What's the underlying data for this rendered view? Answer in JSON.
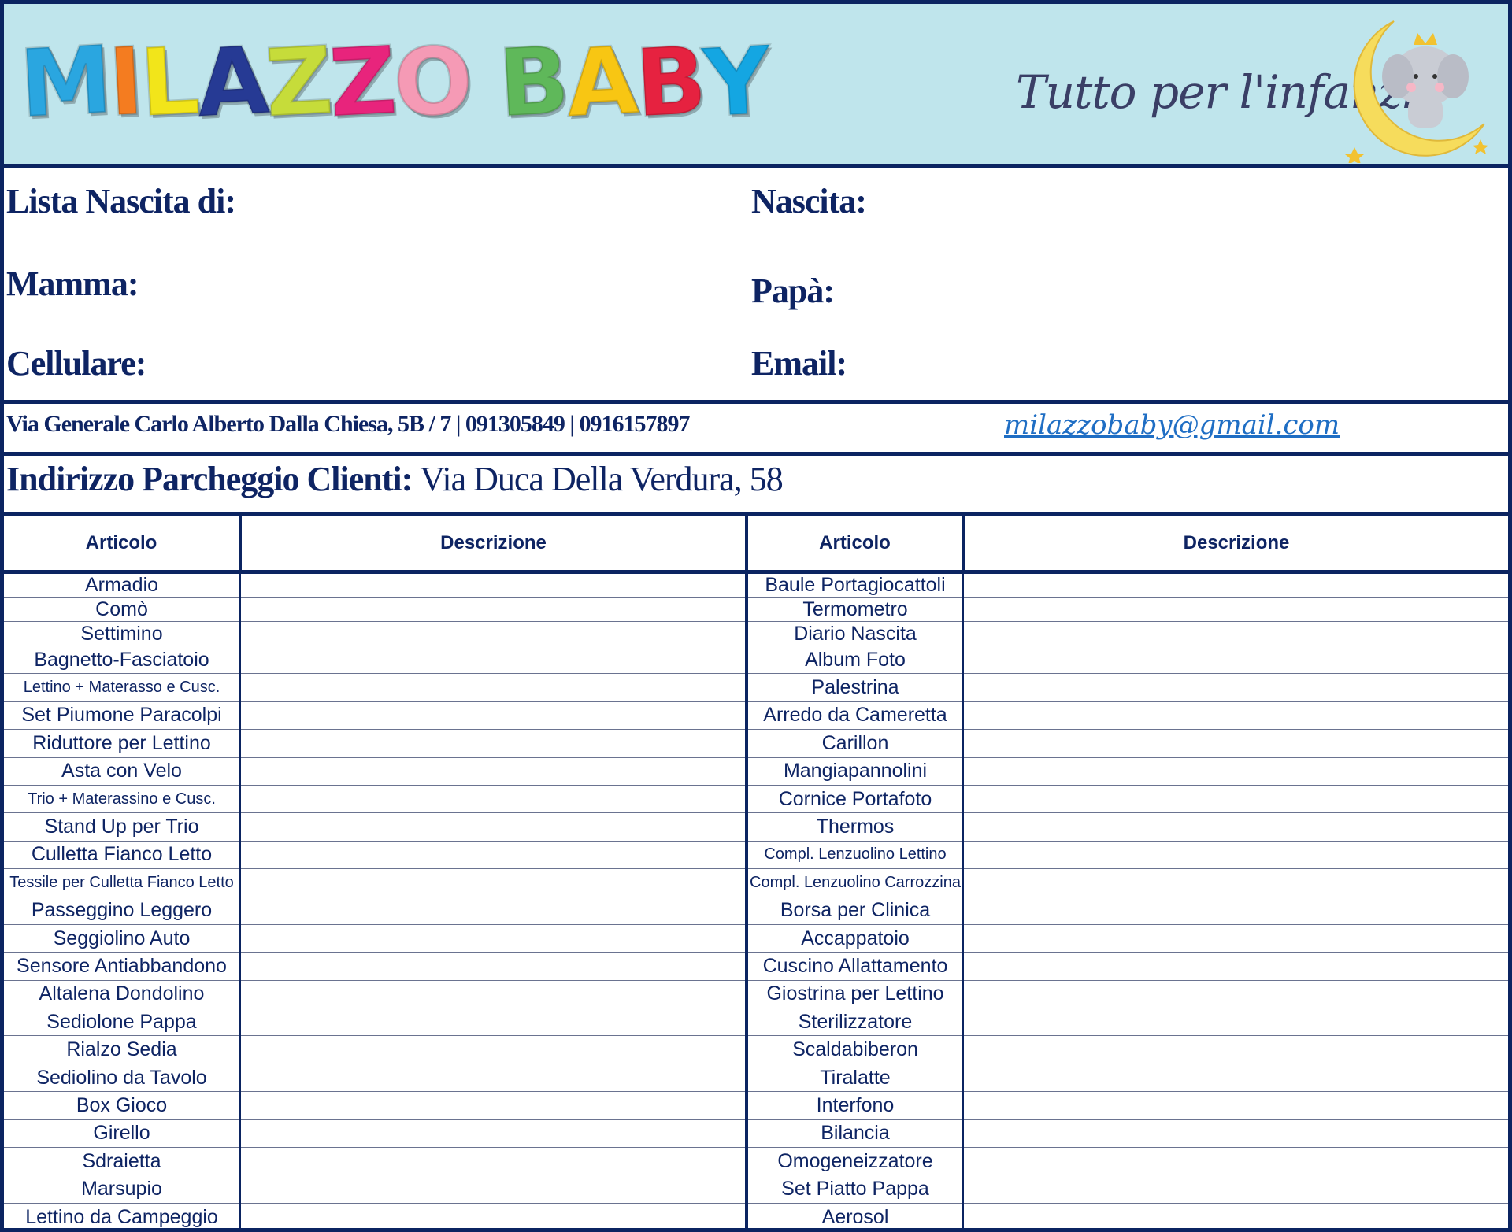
{
  "banner": {
    "logo_text": "MILAZZO BABY",
    "logo_letters": [
      {
        "ch": "M",
        "color": "#2aa6e0"
      },
      {
        "ch": "I",
        "color": "#f47c20"
      },
      {
        "ch": "L",
        "color": "#f2e51a"
      },
      {
        "ch": "A",
        "color": "#263a94"
      },
      {
        "ch": "Z",
        "color": "#c6dc3a"
      },
      {
        "ch": "Z",
        "color": "#e8247c"
      },
      {
        "ch": "O",
        "color": "#f59ab5"
      },
      {
        "ch": " ",
        "color": "#000000"
      },
      {
        "ch": "B",
        "color": "#5fb85a"
      },
      {
        "ch": "A",
        "color": "#f8c613"
      },
      {
        "ch": "B",
        "color": "#e62240"
      },
      {
        "ch": "Y",
        "color": "#14a6e2"
      }
    ],
    "tagline": "Tutto per l'infanzia",
    "background_color": "#bfe5ec"
  },
  "info": {
    "lista_nascita": "Lista Nascita di:",
    "nascita": "Nascita:",
    "mamma": "Mamma:",
    "papa": "Papà:",
    "cellulare": "Cellulare:",
    "email": "Email:"
  },
  "contact": {
    "address": "Via Generale Carlo Alberto Dalla Chiesa, 5B / 7 | 091305849 | 0916157897",
    "email": "milazzobaby@gmail.com"
  },
  "parking": {
    "label": "Indirizzo Parcheggio Clienti:",
    "value": "Via Duca Della Verdura, 58"
  },
  "table": {
    "headers": [
      "Articolo",
      "Descrizione",
      "Articolo",
      "Descrizione"
    ],
    "left": [
      "Armadio",
      "Comò",
      "Settimino",
      "Bagnetto-Fasciatoio",
      "Lettino + Materasso e Cusc.",
      "Set Piumone Paracolpi",
      "Riduttore per Lettino",
      "Asta con Velo",
      "Trio + Materassino e Cusc.",
      "Stand Up per Trio",
      "Culletta Fianco Letto",
      "Tessile per Culletta Fianco Letto",
      "Passeggino Leggero",
      "Seggiolino Auto",
      "Sensore Antiabbandono",
      "Altalena Dondolino",
      "Sediolone Pappa",
      "Rialzo Sedia",
      "Sediolino da Tavolo",
      "Box Gioco",
      "Girello",
      "Sdraietta",
      "Marsupio",
      "Lettino da Campeggio"
    ],
    "right": [
      "Baule Portagiocattoli",
      "Termometro",
      "Diario Nascita",
      "Album Foto",
      "Palestrina",
      "Arredo da Cameretta",
      "Carillon",
      "Mangiapannolini",
      "Cornice Portafoto",
      "Thermos",
      "Compl. Lenzuolino Lettino",
      "Compl. Lenzuolino Carrozzina",
      "Borsa per Clinica",
      "Accappatoio",
      "Cuscino Allattamento",
      "Giostrina per Lettino",
      "Sterilizzatore",
      "Scaldabiberon",
      "Tiralatte",
      "Interfono",
      "Bilancia",
      "Omogeneizzatore",
      "Set Piatto Pappa",
      "Aerosol"
    ]
  },
  "colors": {
    "border": "#0b2461",
    "text": "#0e2463",
    "link": "#1f6ec4"
  }
}
